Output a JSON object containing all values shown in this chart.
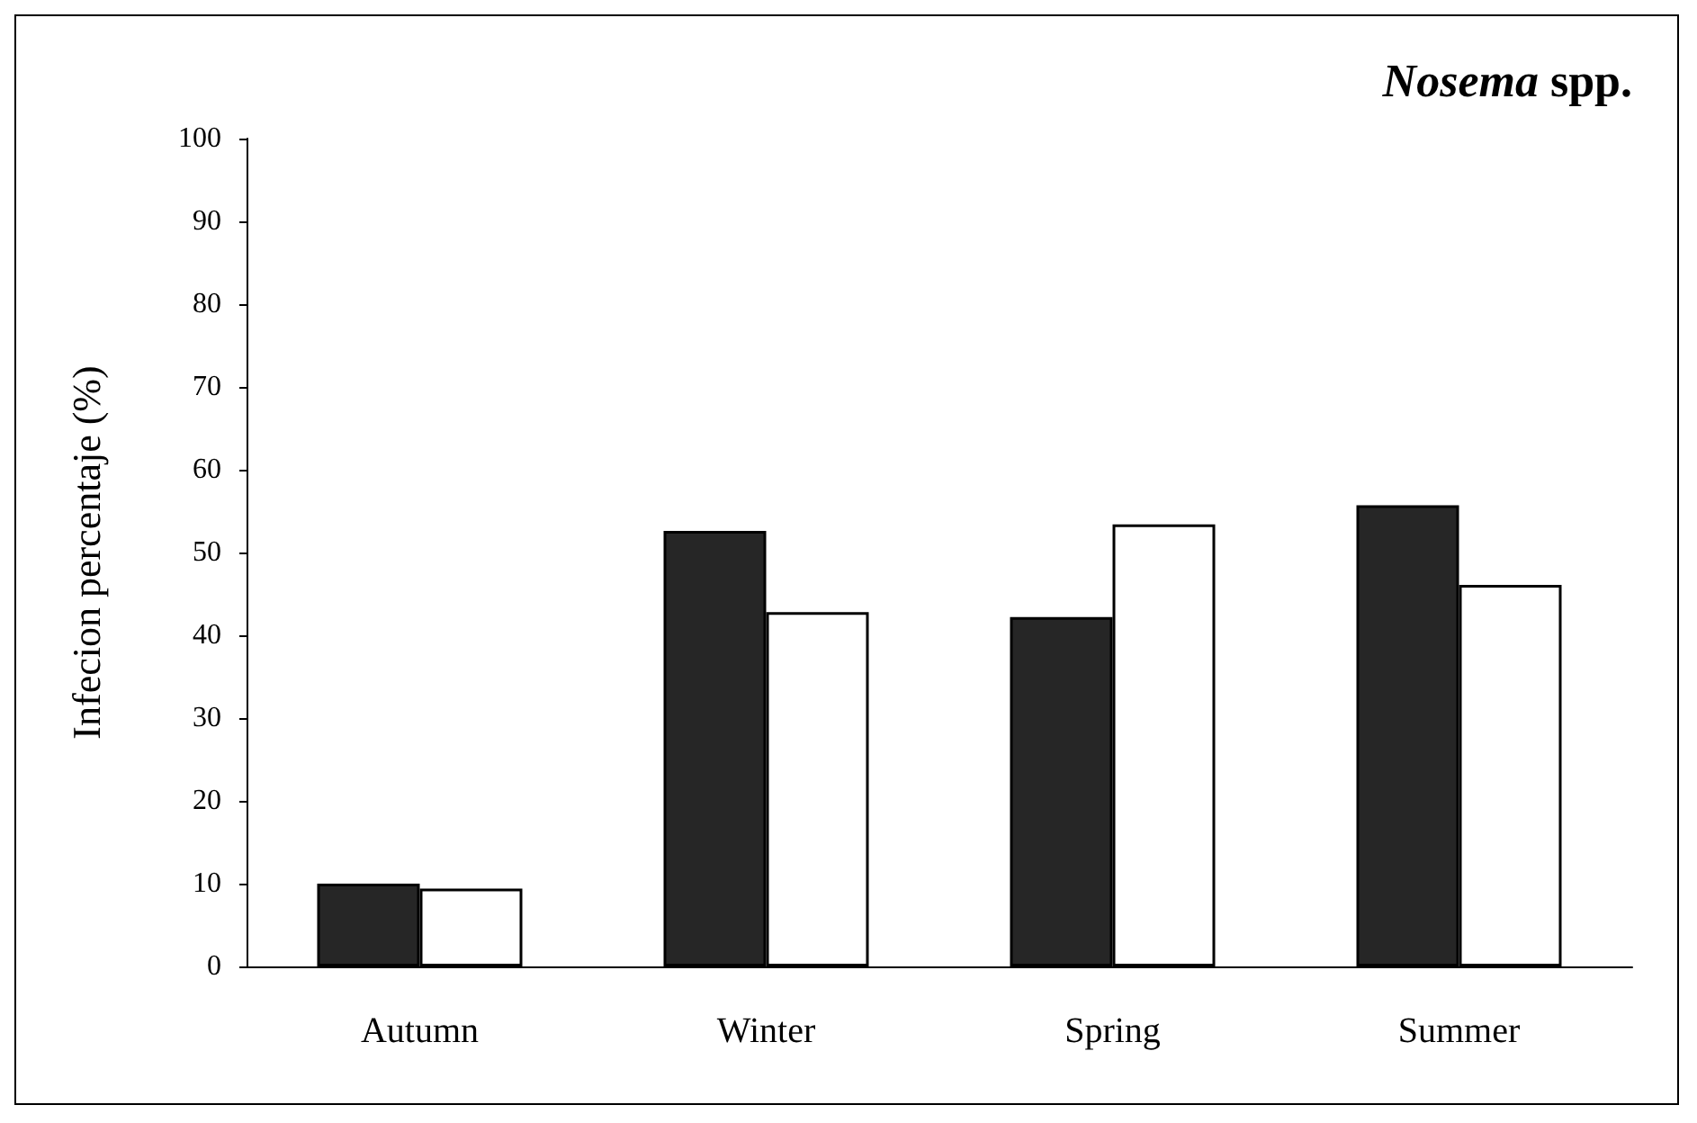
{
  "chart_data": {
    "type": "bar",
    "title": "Nosema spp.",
    "ylabel": "Infecion percentaje (%)",
    "categories": [
      "Autumn",
      "Winter",
      "Spring",
      "Summer"
    ],
    "series": [
      {
        "color": "#262626",
        "values": [
          10.0,
          52.6,
          42.2,
          55.7
        ]
      },
      {
        "color": "#ffffff",
        "values": [
          9.4,
          42.8,
          53.4,
          46.1
        ]
      }
    ],
    "ylim": [
      0,
      100
    ],
    "yticks": [
      0,
      10,
      20,
      30,
      40,
      50,
      60,
      70,
      80,
      90,
      100
    ],
    "grid": false
  }
}
